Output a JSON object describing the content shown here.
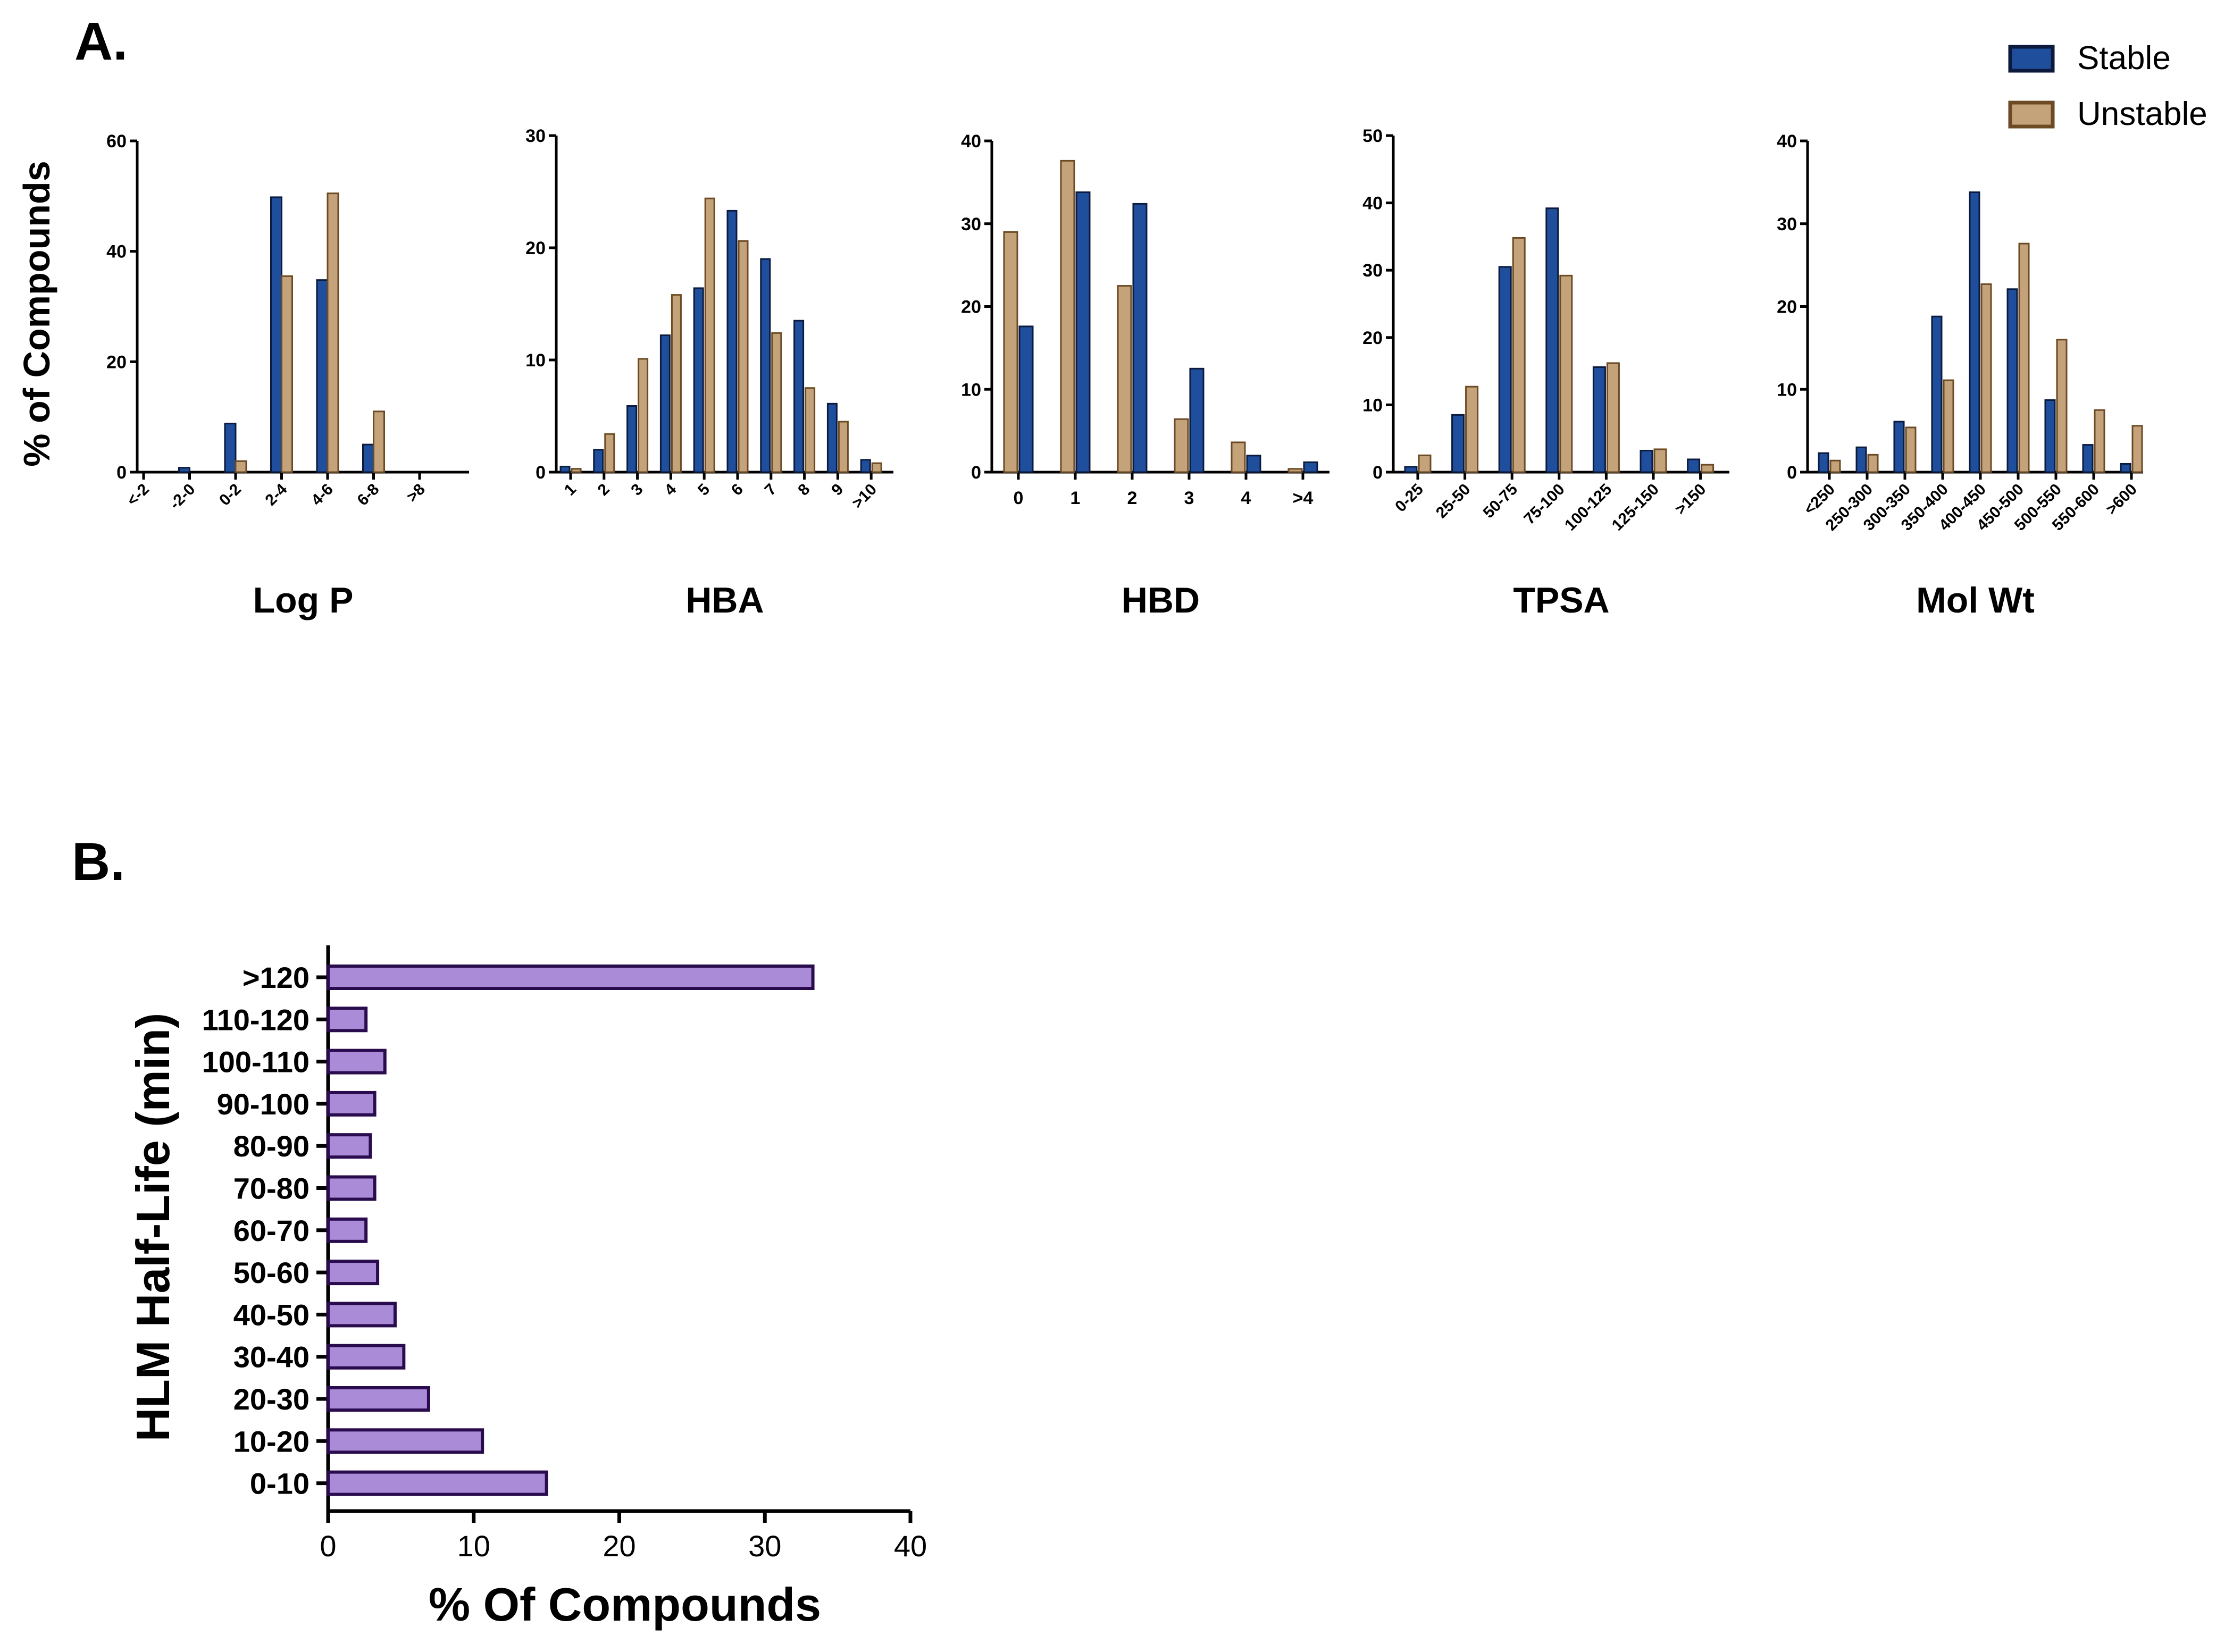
{
  "panel_a_label": "A.",
  "panel_b_label": "B.",
  "shared_ylabel": "% of  Compounds",
  "legend": [
    {
      "name": "Stable",
      "color": "#1f4e9c",
      "stroke": "#0b1a3d"
    },
    {
      "name": "Unstable",
      "color": "#c4a27a",
      "stroke": "#6b4a24"
    }
  ],
  "chart_data": [
    {
      "type": "bar",
      "title": "Log P",
      "xlabel": "Log P",
      "ylabel": "% of  Compounds",
      "ylim": [
        0,
        60
      ],
      "yticks": [
        "0",
        "20",
        "40",
        "60"
      ],
      "categories": [
        "<-2",
        "-2-0",
        "0-2",
        "2-4",
        "4-6",
        "6-8",
        ">8"
      ],
      "series": [
        {
          "name": "Stable",
          "values": [
            0,
            0.8,
            8.8,
            49.8,
            34.8,
            5,
            0
          ]
        },
        {
          "name": "Unstable",
          "values": [
            0,
            0,
            2,
            35.5,
            50.5,
            11,
            0
          ]
        }
      ]
    },
    {
      "type": "bar",
      "title": "HBA",
      "xlabel": "HBA",
      "ylim": [
        0,
        30
      ],
      "yticks": [
        "0",
        "10",
        "20",
        "30"
      ],
      "categories": [
        "1",
        "2",
        "3",
        "4",
        "5",
        "6",
        "7",
        "8",
        "9",
        ">10"
      ],
      "series": [
        {
          "name": "Stable",
          "values": [
            0.5,
            2,
            5.9,
            12.2,
            16.4,
            23.3,
            19,
            13.5,
            6.1,
            1.1
          ]
        },
        {
          "name": "Unstable",
          "values": [
            0.3,
            3.4,
            10.1,
            15.8,
            24.4,
            20.6,
            12.4,
            7.5,
            4.5,
            0.8
          ]
        }
      ]
    },
    {
      "type": "bar",
      "title": "HBD",
      "xlabel": "HBD",
      "ylim": [
        0,
        40
      ],
      "yticks": [
        "0",
        "10",
        "20",
        "30",
        "40"
      ],
      "categories": [
        "0",
        "1",
        "2",
        "3",
        "4",
        ">4"
      ],
      "series": [
        {
          "name": "Stable",
          "values": [
            17.6,
            33.8,
            32.4,
            12.5,
            2,
            1.2
          ]
        },
        {
          "name": "Unstable",
          "values": [
            29,
            37.6,
            22.5,
            6.4,
            3.6,
            0.4
          ]
        }
      ]
    },
    {
      "type": "bar",
      "title": "TPSA",
      "xlabel": "TPSA",
      "ylim": [
        0,
        50
      ],
      "yticks": [
        "0",
        "10",
        "20",
        "30",
        "40",
        "50"
      ],
      "categories": [
        "0-25",
        "25-50",
        "50-75",
        "75-100",
        "100-125",
        "125-150",
        ">150"
      ],
      "series": [
        {
          "name": "Stable",
          "values": [
            0.8,
            8.5,
            30.5,
            39.2,
            15.6,
            3.2,
            1.9
          ]
        },
        {
          "name": "Unstable",
          "values": [
            2.5,
            12.7,
            34.8,
            29.2,
            16.2,
            3.4,
            1.1
          ]
        }
      ]
    },
    {
      "type": "bar",
      "title": "Mol Wt",
      "xlabel": "Mol Wt",
      "ylim": [
        0,
        40
      ],
      "yticks": [
        "0",
        "10",
        "20",
        "30",
        "40"
      ],
      "categories": [
        "<250",
        "250-300",
        "300-350",
        "350-400",
        "400-450",
        "450-500",
        "500-550",
        "550-600",
        ">600"
      ],
      "series": [
        {
          "name": "Stable",
          "values": [
            2.3,
            3,
            6.1,
            18.8,
            33.8,
            22.1,
            8.7,
            3.3,
            1
          ]
        },
        {
          "name": "Unstable",
          "values": [
            1.4,
            2.1,
            5.4,
            11.1,
            22.7,
            27.6,
            16,
            7.5,
            5.6
          ]
        }
      ]
    },
    {
      "type": "bar",
      "orientation": "horizontal",
      "title": "",
      "xlabel": "% Of  Compounds",
      "ylabel": "HLM Half-Life (min)",
      "xlim": [
        0,
        40
      ],
      "xticks": [
        "0",
        "10",
        "20",
        "30",
        "40"
      ],
      "color": "#a98bd8",
      "stroke": "#2a0c4e",
      "categories": [
        ">120",
        "110-120",
        "100-110",
        "90-100",
        "80-90",
        "70-80",
        "60-70",
        "50-60",
        "40-50",
        "30-40",
        "20-30",
        "10-20",
        "0-10"
      ],
      "values": [
        33.3,
        2.6,
        3.9,
        3.2,
        2.9,
        3.2,
        2.6,
        3.4,
        4.6,
        5.2,
        6.9,
        10.6,
        15
      ]
    }
  ]
}
